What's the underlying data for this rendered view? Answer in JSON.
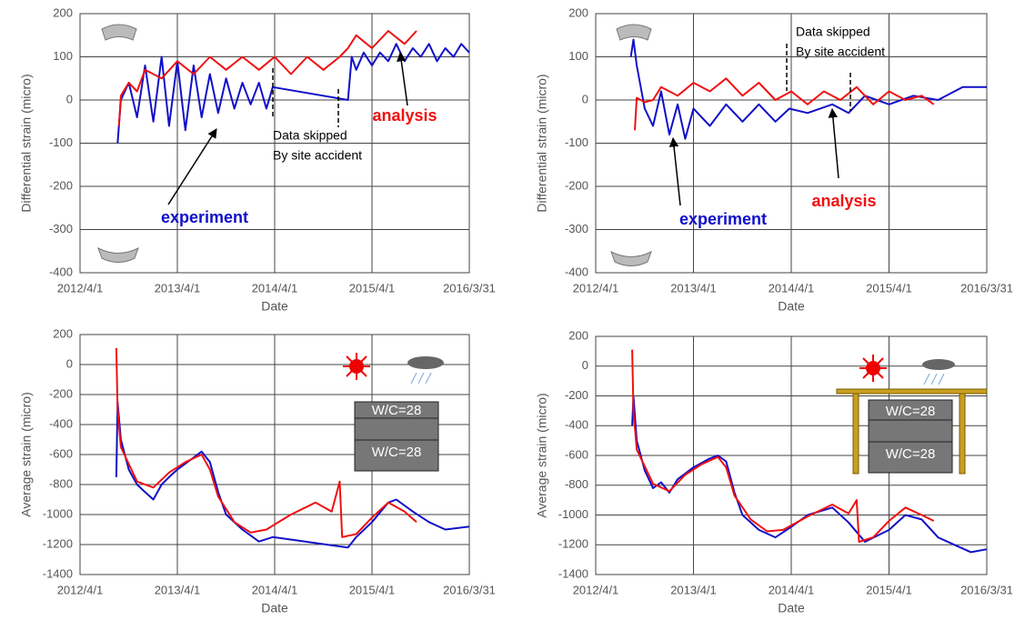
{
  "chart_data": [
    {
      "type": "line",
      "xlabel": "Date",
      "ylabel": "Differential strain (micro)",
      "xlim": [
        "2012/4/1",
        "2016/3/31"
      ],
      "xticks": [
        "2012/4/1",
        "2013/4/1",
        "2014/4/1",
        "2015/4/1",
        "2016/3/31"
      ],
      "ylim": [
        -400,
        200
      ],
      "yticks": [
        -400,
        -300,
        -200,
        -100,
        0,
        100,
        200
      ],
      "grid": true,
      "annotations": [
        "experiment",
        "analysis",
        "Data skipped",
        "By site accident"
      ],
      "series": [
        {
          "name": "experiment",
          "color": "#1010c8",
          "x": [
            "2012/8/20",
            "2012/9/1",
            "2012/10/1",
            "2012/11/1",
            "2012/12/1",
            "2013/1/1",
            "2013/2/1",
            "2013/3/1",
            "2013/4/1",
            "2013/5/1",
            "2013/6/1",
            "2013/7/1",
            "2013/8/1",
            "2013/9/1",
            "2013/10/1",
            "2013/11/1",
            "2013/12/1",
            "2014/1/1",
            "2014/2/1",
            "2014/3/1",
            "2014/3/25",
            "2015/1/1",
            "2015/1/15",
            "2015/2/1",
            "2015/3/1",
            "2015/4/1",
            "2015/5/1",
            "2015/6/1",
            "2015/7/1",
            "2015/8/1",
            "2015/9/1",
            "2015/10/1",
            "2015/11/1",
            "2015/12/1",
            "2016/1/1",
            "2016/2/1",
            "2016/3/1",
            "2016/3/31"
          ],
          "values": [
            -100,
            0,
            40,
            -40,
            80,
            -50,
            100,
            -60,
            90,
            -70,
            80,
            -40,
            60,
            -30,
            50,
            -20,
            40,
            -10,
            40,
            -20,
            30,
            0,
            100,
            70,
            110,
            80,
            110,
            90,
            130,
            90,
            120,
            100,
            130,
            90,
            120,
            100,
            130,
            110
          ]
        },
        {
          "name": "analysis",
          "color": "#f01010",
          "x": [
            "2012/8/25",
            "2012/9/1",
            "2012/10/1",
            "2012/11/1",
            "2012/12/1",
            "2013/2/1",
            "2013/4/1",
            "2013/6/1",
            "2013/8/1",
            "2013/10/1",
            "2013/12/1",
            "2014/2/1",
            "2014/4/1",
            "2014/6/1",
            "2014/8/1",
            "2014/10/1",
            "2014/12/1",
            "2015/1/1",
            "2015/2/1",
            "2015/4/1",
            "2015/6/1",
            "2015/8/1",
            "2015/9/15"
          ],
          "values": [
            -60,
            10,
            40,
            20,
            70,
            50,
            90,
            60,
            100,
            70,
            100,
            70,
            100,
            60,
            100,
            70,
            100,
            120,
            150,
            120,
            160,
            130,
            160
          ]
        }
      ]
    },
    {
      "type": "line",
      "xlabel": "Date",
      "ylabel": "Differential strain (micro)",
      "xlim": [
        "2012/4/1",
        "2016/3/31"
      ],
      "xticks": [
        "2012/4/1",
        "2013/4/1",
        "2014/4/1",
        "2015/4/1",
        "2016/3/31"
      ],
      "ylim": [
        -400,
        200
      ],
      "yticks": [
        -400,
        -300,
        -200,
        -100,
        0,
        100,
        200
      ],
      "grid": true,
      "annotations": [
        "experiment",
        "analysis",
        "Data skipped",
        "By site accident"
      ],
      "series": [
        {
          "name": "experiment",
          "color": "#1010c8",
          "x": [
            "2012/8/10",
            "2012/8/20",
            "2012/9/1",
            "2012/10/1",
            "2012/11/1",
            "2012/12/1",
            "2013/1/1",
            "2013/2/1",
            "2013/3/1",
            "2013/4/1",
            "2013/6/1",
            "2013/8/1",
            "2013/10/1",
            "2013/12/1",
            "2014/2/1",
            "2014/3/25",
            "2014/6/1",
            "2014/9/1",
            "2014/11/1",
            "2015/1/1",
            "2015/4/1",
            "2015/7/1",
            "2015/10/1",
            "2016/1/1",
            "2016/3/31"
          ],
          "values": [
            100,
            140,
            80,
            -20,
            -60,
            20,
            -80,
            -10,
            -90,
            -20,
            -60,
            -10,
            -50,
            -10,
            -50,
            -20,
            -30,
            -10,
            -30,
            10,
            -10,
            10,
            0,
            30,
            30
          ]
        },
        {
          "name": "analysis",
          "color": "#f01010",
          "x": [
            "2012/8/25",
            "2012/9/1",
            "2012/10/1",
            "2012/11/1",
            "2012/12/1",
            "2013/2/1",
            "2013/4/1",
            "2013/6/1",
            "2013/8/1",
            "2013/10/1",
            "2013/12/1",
            "2014/2/1",
            "2014/4/1",
            "2014/6/1",
            "2014/8/1",
            "2014/10/1",
            "2014/12/1",
            "2015/2/1",
            "2015/4/1",
            "2015/6/1",
            "2015/8/1",
            "2015/9/15"
          ],
          "values": [
            -70,
            5,
            -5,
            0,
            30,
            10,
            40,
            20,
            50,
            10,
            40,
            0,
            20,
            -10,
            20,
            0,
            30,
            -10,
            20,
            0,
            10,
            -10
          ]
        }
      ]
    },
    {
      "type": "line",
      "xlabel": "Date",
      "ylabel": "Average strain (micro)",
      "xlim": [
        "2012/4/1",
        "2016/3/31"
      ],
      "xticks": [
        "2012/4/1",
        "2013/4/1",
        "2014/4/1",
        "2015/4/1",
        "2016/3/31"
      ],
      "ylim": [
        -1400,
        200
      ],
      "yticks": [
        -1400,
        -1200,
        -1000,
        -800,
        -600,
        -400,
        -200,
        0,
        200
      ],
      "grid": true,
      "annotations": [
        "W/C=28",
        "W/C=28"
      ],
      "series": [
        {
          "name": "experiment",
          "color": "#1010c8",
          "x": [
            "2012/8/15",
            "2012/8/20",
            "2012/9/1",
            "2012/10/1",
            "2012/11/1",
            "2012/12/1",
            "2013/1/1",
            "2013/2/1",
            "2013/3/1",
            "2013/4/1",
            "2013/6/1",
            "2013/7/1",
            "2013/8/1",
            "2013/9/1",
            "2013/10/1",
            "2013/12/1",
            "2014/2/1",
            "2014/3/25",
            "2015/1/1",
            "2015/2/1",
            "2015/4/1",
            "2015/6/1",
            "2015/7/1",
            "2015/9/1",
            "2015/11/1",
            "2016/1/1",
            "2016/3/31"
          ],
          "values": [
            -750,
            -250,
            -500,
            -700,
            -800,
            -850,
            -900,
            -800,
            -750,
            -700,
            -620,
            -580,
            -650,
            -850,
            -1000,
            -1100,
            -1180,
            -1150,
            -1220,
            -1150,
            -1050,
            -920,
            -900,
            -980,
            -1050,
            -1100,
            -1080
          ]
        },
        {
          "name": "analysis",
          "color": "#f01010",
          "x": [
            "2012/8/15",
            "2012/8/20",
            "2012/9/1",
            "2012/11/1",
            "2013/1/1",
            "2013/3/1",
            "2013/5/1",
            "2013/7/1",
            "2013/8/1",
            "2013/9/1",
            "2013/11/1",
            "2014/1/1",
            "2014/3/1",
            "2014/6/1",
            "2014/9/1",
            "2014/11/1",
            "2014/12/1",
            "2014/12/10",
            "2015/2/1",
            "2015/4/1",
            "2015/6/1",
            "2015/8/1",
            "2015/9/15"
          ],
          "values": [
            110,
            -300,
            -550,
            -780,
            -820,
            -720,
            -650,
            -600,
            -700,
            -880,
            -1050,
            -1120,
            -1100,
            -1000,
            -920,
            -980,
            -780,
            -1150,
            -1130,
            -1020,
            -920,
            -980,
            -1050
          ]
        }
      ]
    },
    {
      "type": "line",
      "xlabel": "Date",
      "ylabel": "Average strain (micro)",
      "xlim": [
        "2012/4/1",
        "2016/3/31"
      ],
      "xticks": [
        "2012/4/1",
        "2013/4/1",
        "2014/4/1",
        "2015/4/1",
        "2016/3/31"
      ],
      "ylim": [
        -1400,
        200
      ],
      "yticks": [
        -1400,
        -1200,
        -1000,
        -800,
        -600,
        -400,
        -200,
        0,
        200
      ],
      "grid": true,
      "annotations": [
        "W/C=28",
        "W/C=28"
      ],
      "series": [
        {
          "name": "experiment",
          "color": "#1010c8",
          "x": [
            "2012/8/15",
            "2012/8/20",
            "2012/9/1",
            "2012/10/1",
            "2012/11/1",
            "2012/12/1",
            "2013/1/1",
            "2013/2/1",
            "2013/4/1",
            "2013/6/1",
            "2013/7/1",
            "2013/8/1",
            "2013/9/1",
            "2013/10/1",
            "2013/12/1",
            "2014/2/1",
            "2014/4/1",
            "2014/6/1",
            "2014/9/1",
            "2014/11/1",
            "2015/1/1",
            "2015/4/1",
            "2015/6/1",
            "2015/8/1",
            "2015/10/1",
            "2015/12/1",
            "2016/2/1",
            "2016/3/31"
          ],
          "values": [
            -400,
            -200,
            -500,
            -700,
            -820,
            -780,
            -850,
            -760,
            -680,
            -620,
            -600,
            -640,
            -850,
            -1000,
            -1100,
            -1150,
            -1080,
            -1000,
            -950,
            -1050,
            -1180,
            -1100,
            -1000,
            -1030,
            -1150,
            -1200,
            -1250,
            -1230
          ]
        },
        {
          "name": "analysis",
          "color": "#f01010",
          "x": [
            "2012/8/15",
            "2012/8/20",
            "2012/9/1",
            "2012/11/1",
            "2013/1/1",
            "2013/3/1",
            "2013/5/1",
            "2013/7/1",
            "2013/8/1",
            "2013/9/1",
            "2013/11/1",
            "2014/1/1",
            "2014/3/1",
            "2014/6/1",
            "2014/9/1",
            "2014/11/1",
            "2014/12/1",
            "2014/12/10",
            "2015/2/1",
            "2015/4/1",
            "2015/6/1",
            "2015/8/1",
            "2015/9/15"
          ],
          "values": [
            110,
            -300,
            -560,
            -790,
            -840,
            -730,
            -660,
            -610,
            -680,
            -870,
            -1030,
            -1110,
            -1100,
            -1010,
            -930,
            -990,
            -900,
            -1180,
            -1150,
            -1040,
            -950,
            -1000,
            -1040
          ]
        }
      ]
    }
  ]
}
